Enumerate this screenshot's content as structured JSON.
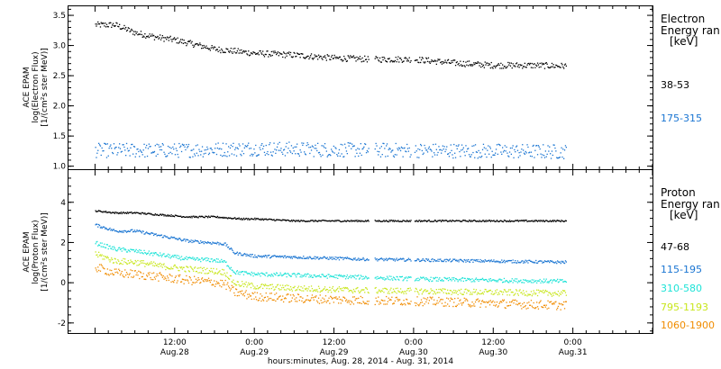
{
  "chart_data": [
    {
      "type": "scatter",
      "panel": "electron",
      "ylabel": [
        "ACE EPAM",
        "log(Electron Flux)",
        "[1/(cm²s ster MeV)]"
      ],
      "ylim": [
        0.95,
        3.65
      ],
      "yticks": [
        1.0,
        1.5,
        2.0,
        2.5,
        3.0,
        3.5
      ],
      "ytick_labels": [
        "1.0",
        "1.5",
        "2.0",
        "2.5",
        "3.0",
        "3.5"
      ],
      "legend_title": "Electron\nEnergy ran\n[keV]",
      "series": [
        {
          "name": "38-53",
          "color": "#000000",
          "x_hours": [
            0,
            3,
            6,
            9,
            12,
            18,
            24,
            30,
            36,
            42,
            48,
            54,
            60,
            66,
            70
          ],
          "values": [
            3.35,
            3.35,
            3.22,
            3.15,
            3.1,
            2.95,
            2.88,
            2.85,
            2.8,
            2.78,
            2.78,
            2.72,
            2.68,
            2.68,
            2.67
          ],
          "spread": 0.05
        },
        {
          "name": "175-315",
          "color": "#1a75d2",
          "x_hours": [
            0,
            12,
            24,
            36,
            48,
            60,
            70
          ],
          "values": [
            1.27,
            1.27,
            1.3,
            1.28,
            1.27,
            1.26,
            1.25
          ],
          "spread": 0.12
        }
      ]
    },
    {
      "type": "scatter",
      "panel": "proton",
      "ylabel": [
        "ACE EPAM",
        "log(Proton Flux)",
        "[1/(cm²s ster MeV)]"
      ],
      "ylim": [
        -2.5,
        5.6
      ],
      "yticks": [
        -2,
        0,
        2,
        4
      ],
      "ytick_labels": [
        "-2",
        "0",
        "2",
        "4"
      ],
      "legend_title": "Proton\nEnergy ran\n[keV]",
      "series": [
        {
          "name": "47-68",
          "color": "#000000",
          "x_hours": [
            0,
            3,
            6,
            10,
            14,
            18,
            22,
            24,
            30,
            40,
            50,
            60,
            70
          ],
          "values": [
            3.6,
            3.5,
            3.5,
            3.4,
            3.3,
            3.3,
            3.2,
            3.2,
            3.1,
            3.1,
            3.1,
            3.1,
            3.1
          ],
          "spread": 0.04
        },
        {
          "name": "115-195",
          "color": "#1a75d2",
          "x_hours": [
            0,
            3,
            6,
            10,
            14,
            18,
            19.5,
            21,
            24,
            30,
            40,
            50,
            60,
            70
          ],
          "values": [
            2.9,
            2.6,
            2.6,
            2.35,
            2.1,
            2.0,
            1.95,
            1.5,
            1.35,
            1.3,
            1.2,
            1.15,
            1.1,
            1.05
          ],
          "spread": 0.07
        },
        {
          "name": "310-580",
          "color": "#1ee3d7",
          "x_hours": [
            0,
            3,
            6,
            10,
            14,
            18,
            19.5,
            21,
            24,
            30,
            40,
            50,
            60,
            70
          ],
          "values": [
            2.0,
            1.7,
            1.6,
            1.4,
            1.2,
            1.15,
            1.05,
            0.55,
            0.45,
            0.4,
            0.3,
            0.2,
            0.15,
            0.1
          ],
          "spread": 0.1
        },
        {
          "name": "795-1193",
          "color": "#c8e61c",
          "x_hours": [
            0,
            3,
            6,
            10,
            14,
            18,
            19.5,
            21,
            24,
            30,
            40,
            50,
            60,
            70
          ],
          "values": [
            1.45,
            1.1,
            1.05,
            0.85,
            0.7,
            0.6,
            0.55,
            0.0,
            -0.15,
            -0.25,
            -0.35,
            -0.4,
            -0.45,
            -0.5
          ],
          "spread": 0.15
        },
        {
          "name": "1060-1900",
          "color": "#f08c00",
          "x_hours": [
            0,
            3,
            6,
            10,
            14,
            18,
            19.5,
            21,
            24,
            30,
            40,
            50,
            60,
            70
          ],
          "values": [
            0.8,
            0.5,
            0.45,
            0.3,
            0.15,
            0.05,
            -0.05,
            -0.45,
            -0.65,
            -0.75,
            -0.85,
            -0.9,
            -1.0,
            -1.1
          ],
          "spread": 0.22
        }
      ]
    }
  ],
  "x_axis": {
    "range_hours": [
      -4,
      84
    ],
    "ticks": [
      {
        "hour": 12,
        "label1": "12:00",
        "label2": "Aug.28"
      },
      {
        "hour": 24,
        "label1": "0:00",
        "label2": "Aug.29"
      },
      {
        "hour": 36,
        "label1": "12:00",
        "label2": "Aug.29"
      },
      {
        "hour": 48,
        "label1": "0:00",
        "label2": "Aug.30"
      },
      {
        "hour": 60,
        "label1": "12:00",
        "label2": "Aug.30"
      },
      {
        "hour": 72,
        "label1": "0:00",
        "label2": "Aug.31"
      }
    ],
    "xlabel": "hours:minutes, Aug. 28, 2014 - Aug. 31, 2014"
  },
  "side": {
    "electron_title_1": "Electron",
    "electron_title_2": "Energy ran",
    "electron_unit": "[keV]",
    "proton_title_1": "Proton",
    "proton_title_2": "Energy ran",
    "proton_unit": "[keV]"
  }
}
